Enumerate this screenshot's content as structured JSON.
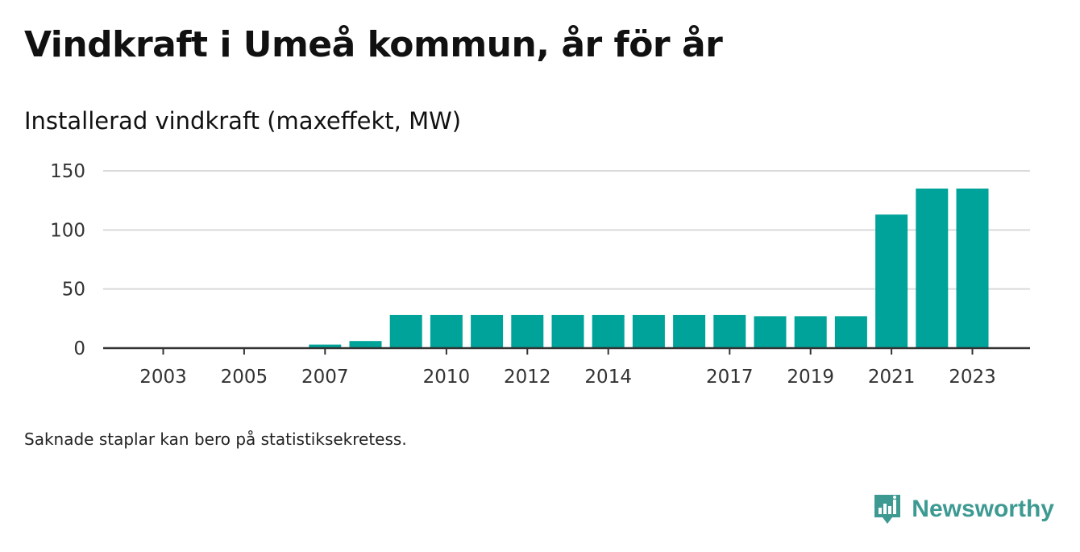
{
  "header": {
    "title": "Vindkraft i Umeå kommun, år för år",
    "subtitle": "Installerad vindkraft (maxeffekt, MW)"
  },
  "footer": {
    "note": "Saknade staplar kan bero på statistiksekretess.",
    "brand": "Newsworthy"
  },
  "colors": {
    "bar": "#00a39a",
    "grid": "#d9d9d9",
    "axis": "#333333",
    "brand": "#3d9a92"
  },
  "brand_icon": "bar-chart-speech-bubble-icon",
  "chart_data": {
    "type": "bar",
    "categories": [
      "2003",
      "2004",
      "2005",
      "2006",
      "2007",
      "2008",
      "2009",
      "2010",
      "2011",
      "2012",
      "2013",
      "2014",
      "2015",
      "2016",
      "2017",
      "2018",
      "2019",
      "2020",
      "2021",
      "2022",
      "2023"
    ],
    "values": [
      0,
      0,
      0,
      0,
      3,
      6,
      28,
      28,
      28,
      28,
      28,
      28,
      28,
      28,
      28,
      27,
      27,
      27,
      113,
      135,
      135
    ],
    "x_tick_labels": [
      "2003",
      "2005",
      "2007",
      "2010",
      "2012",
      "2014",
      "2017",
      "2019",
      "2021",
      "2023"
    ],
    "y_ticks": [
      0,
      50,
      100,
      150
    ],
    "ylim": [
      0,
      150
    ],
    "title": "Vindkraft i Umeå kommun, år för år",
    "subtitle": "Installerad vindkraft (maxeffekt, MW)",
    "xlabel": "",
    "ylabel": "",
    "grid": true,
    "legend": "none"
  }
}
